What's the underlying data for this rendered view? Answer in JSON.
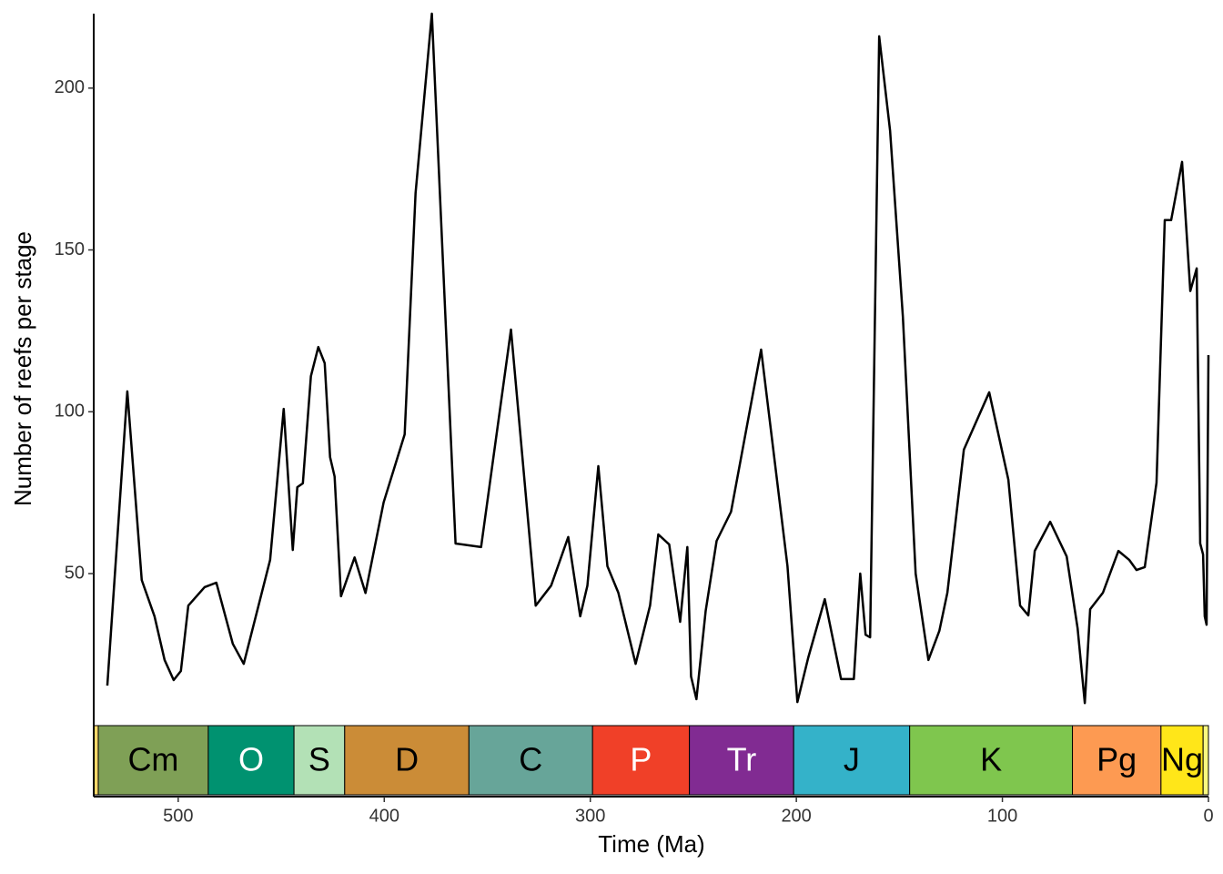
{
  "chart_data": {
    "type": "line",
    "x_label": "Time (Ma)",
    "y_label": "Number of reefs per stage",
    "x": [
      534.4,
      524.7,
      517.7,
      511.5,
      506.6,
      502.2,
      498.7,
      495.1,
      487.2,
      481.5,
      473.5,
      468.2,
      455.4,
      448.8,
      444.4,
      442.2,
      439.5,
      435.6,
      432.0,
      428.9,
      426.3,
      424.1,
      421.0,
      414.4,
      409.1,
      400.3,
      390.1,
      384.8,
      376.9,
      365.4,
      353.0,
      338.5,
      326.5,
      319.0,
      310.7,
      304.9,
      301.4,
      296.1,
      291.7,
      286.4,
      278.0,
      271.0,
      267.0,
      261.7,
      256.4,
      252.9,
      251.1,
      248.5,
      244.0,
      238.7,
      231.7,
      217.1,
      204.3,
      199.5,
      194.2,
      186.2,
      178.3,
      172.1,
      169.0,
      166.4,
      164.2,
      159.8,
      154.5,
      148.3,
      142.1,
      135.9,
      130.6,
      126.7,
      118.7,
      106.4,
      97.1,
      91.4,
      87.4,
      84.3,
      76.8,
      68.8,
      63.5,
      60.0,
      57.4,
      51.2,
      43.7,
      38.4,
      34.9,
      30.9,
      25.2,
      21.2,
      18.1,
      12.8,
      8.8,
      5.7,
      4.0,
      2.6,
      1.8,
      0.9,
      0
    ],
    "values": [
      15.4,
      106.3,
      48,
      36.8,
      23.3,
      17.1,
      19.9,
      40.1,
      45.8,
      47.2,
      28.3,
      22.1,
      54.2,
      100.9,
      57.3,
      76.7,
      77.9,
      111,
      120,
      115,
      86,
      80,
      43,
      55,
      44,
      72,
      93,
      167.6,
      223,
      59.3,
      58.2,
      125.4,
      40.1,
      46.3,
      61.3,
      36.8,
      46.3,
      83.2,
      52.3,
      44.1,
      22.1,
      40.1,
      62.1,
      59,
      35.1,
      58.2,
      18.2,
      11.2,
      38.5,
      60.1,
      69.1,
      119.2,
      52.3,
      10.3,
      24.1,
      42.1,
      17.4,
      17.4,
      50,
      31.1,
      30.3,
      216,
      186.8,
      129.4,
      50,
      23.3,
      32.3,
      44.1,
      88.3,
      106,
      79,
      40.1,
      37.1,
      57,
      66,
      55.3,
      33.1,
      10,
      39,
      44.1,
      57,
      54.2,
      51.1,
      52,
      78.1,
      159.2,
      159.2,
      177.2,
      137.3,
      144.3,
      59.3,
      55.9,
      36.8,
      34.2,
      117.5
    ],
    "color": "#000000",
    "xlim": [
      541,
      0
    ],
    "ylim": [
      5,
      223
    ],
    "xticks": [
      500,
      400,
      300,
      200,
      100,
      0
    ],
    "yticks": [
      50,
      100,
      150,
      200
    ],
    "timescale": {
      "periods": [
        {
          "name": null,
          "start": 541,
          "end": 538.8,
          "color": "#FED96A",
          "label_color": "#000000"
        },
        {
          "name": "Cm",
          "start": 538.8,
          "end": 485.4,
          "color": "#7FA056",
          "label_color": "#000000"
        },
        {
          "name": "O",
          "start": 485.4,
          "end": 443.8,
          "color": "#009270",
          "label_color": "#FFFFFF"
        },
        {
          "name": "S",
          "start": 443.8,
          "end": 419.2,
          "color": "#B3E1B6",
          "label_color": "#000000"
        },
        {
          "name": "D",
          "start": 419.2,
          "end": 358.9,
          "color": "#CB8C37",
          "label_color": "#000000"
        },
        {
          "name": "C",
          "start": 358.9,
          "end": 298.9,
          "color": "#67A599",
          "label_color": "#000000"
        },
        {
          "name": "P",
          "start": 298.9,
          "end": 251.9,
          "color": "#F04028",
          "label_color": "#FFFFFF"
        },
        {
          "name": "Tr",
          "start": 251.9,
          "end": 201.3,
          "color": "#812B92",
          "label_color": "#FFFFFF"
        },
        {
          "name": "J",
          "start": 201.3,
          "end": 145,
          "color": "#34B2C9",
          "label_color": "#000000"
        },
        {
          "name": "K",
          "start": 145,
          "end": 66,
          "color": "#7FC64E",
          "label_color": "#000000"
        },
        {
          "name": "Pg",
          "start": 66,
          "end": 23.03,
          "color": "#FD9A52",
          "label_color": "#000000"
        },
        {
          "name": "Ng",
          "start": 23.03,
          "end": 2.58,
          "color": "#FFE619",
          "label_color": "#000000"
        },
        {
          "name": null,
          "start": 2.58,
          "end": 0,
          "color": "#F9F97F",
          "label_color": "#000000"
        }
      ]
    }
  }
}
